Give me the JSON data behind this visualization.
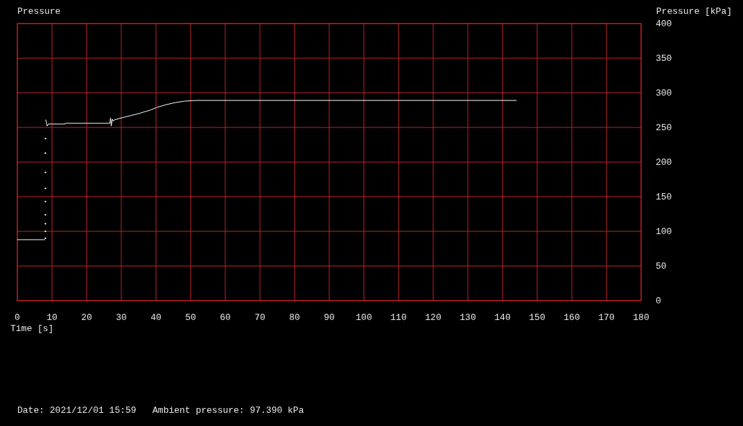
{
  "chart_data": {
    "type": "line",
    "title": "Pressure",
    "xlabel": "Time [s]",
    "ylabel": "Pressure [kPa]",
    "xlim": [
      0,
      180
    ],
    "xticks": [
      0,
      10,
      20,
      30,
      40,
      50,
      60,
      70,
      80,
      90,
      100,
      110,
      120,
      130,
      140,
      150,
      160,
      170,
      180
    ],
    "ylim": [
      0,
      400
    ],
    "yticks": [
      0,
      50,
      100,
      150,
      200,
      250,
      300,
      350,
      400
    ],
    "grid": true,
    "annotations": [
      "Date: 2021/12/01 15:59   Ambient pressure: 97.390 kPa"
    ],
    "series": [
      {
        "color": "#ffffff",
        "line_style": "solid",
        "marker": "none",
        "x": [
          0,
          7.9,
          8.0,
          8.2,
          8.4,
          8.6,
          9.0,
          13.8,
          13.9,
          26.7,
          26.9,
          27.1,
          27.4,
          27.7,
          28,
          31,
          35,
          38.3,
          40.3,
          43,
          45.7,
          48.3,
          51.7,
          52.2,
          144
        ],
        "values": [
          88,
          88,
          null,
          261,
          257,
          252,
          255,
          255,
          256,
          256,
          264,
          252,
          262,
          259,
          261,
          265,
          270,
          275,
          279,
          283,
          286,
          288,
          289,
          289,
          289
        ]
      },
      {
        "type": "scatter",
        "color": "#ffffff",
        "marker": "square",
        "x": [
          8.1,
          8.1,
          8.1,
          8.1,
          8.1,
          8.1,
          8.1,
          8.1,
          8.1
        ],
        "values": [
          90,
          100,
          111,
          124,
          143,
          162,
          185,
          213,
          234
        ]
      }
    ]
  }
}
